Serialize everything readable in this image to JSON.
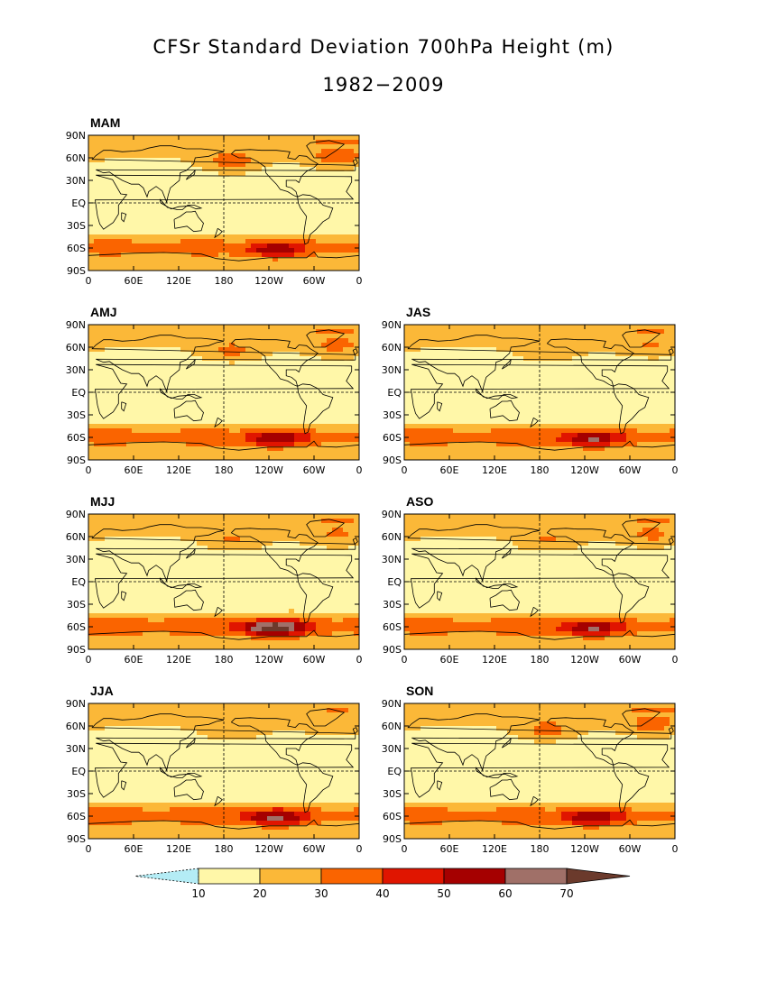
{
  "title": "CFSr Standard Deviation 700hPa Height (m)",
  "subtitle": "1982−2009",
  "lat_ticks": [
    "90N",
    "60N",
    "30N",
    "EQ",
    "30S",
    "60S",
    "90S"
  ],
  "lon_ticks": [
    "0",
    "60E",
    "120E",
    "180",
    "120W",
    "60W",
    "0"
  ],
  "panels": [
    {
      "label": "MAM",
      "col": 0,
      "row": 0,
      "south_peak": 60,
      "south_strength": 0.95,
      "north_strength": 0.9
    },
    {
      "label": "AMJ",
      "col": 0,
      "row": 1,
      "south_peak": 60,
      "south_strength": 1.0,
      "north_strength": 0.7
    },
    {
      "label": "JAS",
      "col": 1,
      "row": 1,
      "south_peak": 60,
      "south_strength": 1.05,
      "north_strength": 0.55
    },
    {
      "label": "MJJ",
      "col": 0,
      "row": 2,
      "south_peak": 70,
      "south_strength": 1.2,
      "north_strength": 0.6
    },
    {
      "label": "ASO",
      "col": 1,
      "row": 2,
      "south_peak": 60,
      "south_strength": 1.05,
      "north_strength": 0.65
    },
    {
      "label": "JJA",
      "col": 0,
      "row": 3,
      "south_peak": 60,
      "south_strength": 1.1,
      "north_strength": 0.5
    },
    {
      "label": "SON",
      "col": 1,
      "row": 3,
      "south_peak": 60,
      "south_strength": 1.0,
      "north_strength": 0.8
    }
  ],
  "colorbar": {
    "levels": [
      "10",
      "20",
      "30",
      "40",
      "50",
      "60",
      "70"
    ],
    "colors": [
      "#b4ecf5",
      "#fff7a8",
      "#fbb838",
      "#fa6400",
      "#e01500",
      "#a50000",
      "#a07068",
      "#6b3a2c"
    ]
  }
}
